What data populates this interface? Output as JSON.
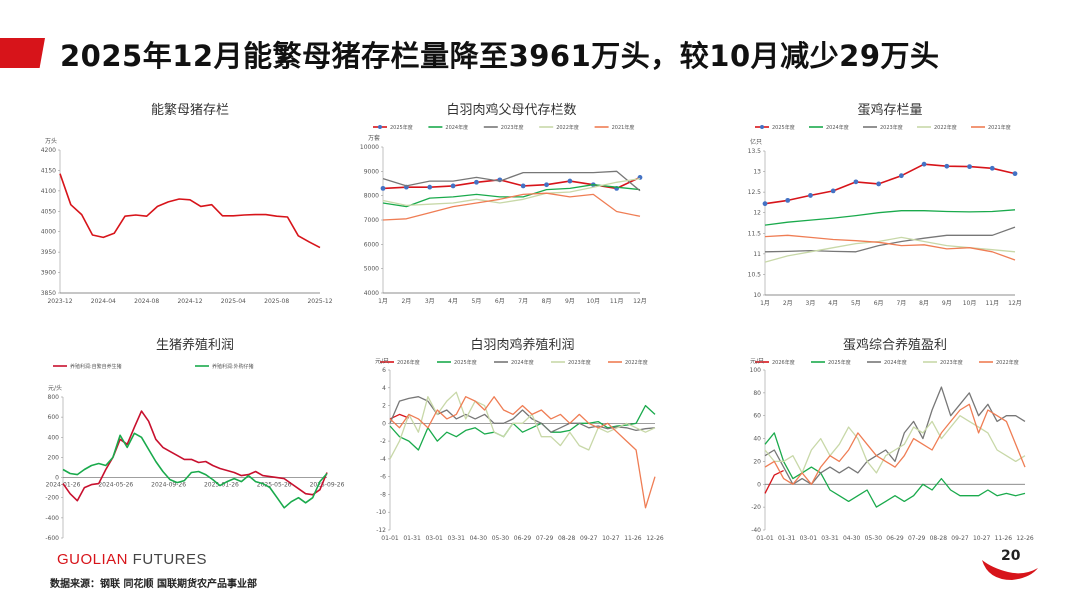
{
  "slide": {
    "title": "2025年12月能繁母猪存栏量降至3961万头，较10月减少29万头",
    "logo_main": "GUOLIAN",
    "logo_sub": " FUTURES",
    "source": "数据来源：钢联  同花顺  国联期货农产品事业部",
    "page_number": "20",
    "accent_color": "#d7141a"
  },
  "chart_data": [
    {
      "type": "line",
      "title": "能繁母猪存栏",
      "unit": "万头",
      "ylim": [
        3850,
        4200
      ],
      "yticks": [
        3850,
        3900,
        3950,
        4000,
        4050,
        4100,
        4150,
        4200
      ],
      "xticks": [
        "2023-12",
        "2024-04",
        "2024-08",
        "2024-12",
        "2025-04",
        "2025-08",
        "2025-12"
      ],
      "legend": [],
      "series": [
        {
          "color": "#d7141a",
          "values": [
            4142,
            4066,
            4042,
            3992,
            3986,
            3996,
            4038,
            4041,
            4038,
            4062,
            4073,
            4080,
            4078,
            4062,
            4066,
            4039,
            4039,
            4041,
            4042,
            4042,
            4038,
            4036,
            3990,
            3975,
            3961
          ]
        }
      ]
    },
    {
      "type": "line",
      "title": "白羽肉鸡父母代存栏数",
      "unit": "万套",
      "ylim": [
        4000,
        10000
      ],
      "yticks": [
        4000,
        5000,
        6000,
        7000,
        8000,
        9000,
        10000
      ],
      "xticks": [
        "1月",
        "2月",
        "3月",
        "4月",
        "5月",
        "6月",
        "7月",
        "8月",
        "9月",
        "10月",
        "11月",
        "12月"
      ],
      "legend": [
        "2025年度",
        "2024年度",
        "2023年度",
        "2022年度",
        "2021年度"
      ],
      "series": [
        {
          "name": "2025年度",
          "color": "#d7141a",
          "markers": true,
          "values": [
            8300,
            8350,
            8350,
            8400,
            8550,
            8650,
            8400,
            8450,
            8600,
            8450,
            8300,
            8750
          ]
        },
        {
          "name": "2024年度",
          "color": "#1aaa4c",
          "values": [
            7700,
            7550,
            7900,
            7950,
            8050,
            7950,
            7950,
            8250,
            8300,
            8450,
            8350,
            8250
          ]
        },
        {
          "name": "2023年度",
          "color": "#777777",
          "values": [
            8700,
            8400,
            8600,
            8600,
            8750,
            8600,
            8950,
            8950,
            8950,
            8950,
            9000,
            8200
          ]
        },
        {
          "name": "2022年度",
          "color": "#c8d8a8",
          "values": [
            7800,
            7600,
            7650,
            7700,
            7850,
            7700,
            7850,
            8100,
            8150,
            8350,
            8550,
            8700
          ]
        },
        {
          "name": "2021年度",
          "color": "#ef7d54",
          "values": [
            7000,
            7050,
            7300,
            7550,
            7700,
            7850,
            8050,
            8100,
            7950,
            8050,
            7350,
            7150
          ]
        }
      ]
    },
    {
      "type": "line",
      "title": "蛋鸡存栏量",
      "unit": "亿只",
      "ylim": [
        10,
        13.5
      ],
      "yticks": [
        10,
        10.5,
        11,
        11.5,
        12,
        12.5,
        13,
        13.5
      ],
      "xticks": [
        "1月",
        "2月",
        "3月",
        "4月",
        "5月",
        "6月",
        "7月",
        "8月",
        "9月",
        "10月",
        "11月",
        "12月"
      ],
      "legend": [
        "2025年度",
        "2024年度",
        "2023年度",
        "2022年度",
        "2021年度"
      ],
      "series": [
        {
          "name": "2025年度",
          "color": "#d7141a",
          "markers": true,
          "values": [
            12.22,
            12.3,
            12.42,
            12.53,
            12.75,
            12.7,
            12.9,
            13.18,
            13.13,
            13.12,
            13.08,
            12.95
          ]
        },
        {
          "name": "2024年度",
          "color": "#1aaa4c",
          "values": [
            11.7,
            11.77,
            11.82,
            11.87,
            11.93,
            12.0,
            12.05,
            12.05,
            12.03,
            12.02,
            12.03,
            12.07
          ]
        },
        {
          "name": "2023年度",
          "color": "#777777",
          "values": [
            11.05,
            11.06,
            11.08,
            11.06,
            11.05,
            11.2,
            11.3,
            11.38,
            11.45,
            11.45,
            11.45,
            11.65
          ]
        },
        {
          "name": "2022年度",
          "color": "#c8d8a8",
          "values": [
            10.8,
            10.95,
            11.05,
            11.15,
            11.25,
            11.3,
            11.4,
            11.3,
            11.2,
            11.15,
            11.1,
            11.05
          ]
        },
        {
          "name": "2021年度",
          "color": "#ef7d54",
          "values": [
            11.42,
            11.45,
            11.4,
            11.35,
            11.32,
            11.28,
            11.2,
            11.22,
            11.12,
            11.15,
            11.05,
            10.85
          ]
        }
      ]
    },
    {
      "type": "line",
      "title": "生猪养殖利润",
      "unit": "元/头",
      "ylim": [
        -600,
        800
      ],
      "yticks": [
        -600,
        -400,
        -200,
        0,
        200,
        400,
        600,
        800
      ],
      "xticks": [
        "2024-01-26",
        "2024-05-26",
        "2024-09-26",
        "2025-01-26",
        "2025-05-26",
        "2025-09-26"
      ],
      "legend": [
        "养殖利润:自繁自养生猪",
        "养殖利润:外购仔猪"
      ],
      "series": [
        {
          "name": "养殖利润:自繁自养生猪",
          "color": "#c8102e",
          "values": [
            -60,
            -160,
            -230,
            -100,
            -70,
            -60,
            80,
            200,
            380,
            330,
            500,
            660,
            560,
            380,
            300,
            260,
            220,
            180,
            180,
            150,
            160,
            120,
            90,
            70,
            50,
            20,
            30,
            60,
            20,
            10,
            0,
            -10,
            -60,
            -110,
            -160,
            -170,
            -120,
            50
          ]
        },
        {
          "name": "养殖利润:外购仔猪",
          "color": "#1aaa4c",
          "values": [
            80,
            40,
            30,
            80,
            120,
            140,
            120,
            200,
            420,
            300,
            440,
            400,
            280,
            160,
            60,
            -20,
            -50,
            -30,
            50,
            60,
            30,
            -20,
            -80,
            -40,
            -10,
            -40,
            20,
            -40,
            -60,
            -100,
            -200,
            -300,
            -240,
            -200,
            -250,
            -200,
            -40,
            40
          ]
        }
      ]
    },
    {
      "type": "line",
      "title": "白羽肉鸡养殖利润",
      "unit": "元/只",
      "ylim": [
        -12,
        6
      ],
      "yticks": [
        -12,
        -10,
        -8,
        -6,
        -4,
        -2,
        0,
        2,
        4,
        6
      ],
      "xticks": [
        "01-01",
        "01-31",
        "03-01",
        "03-31",
        "04-30",
        "05-30",
        "06-29",
        "07-29",
        "08-28",
        "09-27",
        "10-27",
        "11-26",
        "12-26"
      ],
      "legend": [
        "2026年度",
        "2025年度",
        "2024年度",
        "2023年度",
        "2022年度"
      ],
      "series": [
        {
          "name": "2026年度",
          "color": "#d7141a",
          "values": [
            0.5,
            1.0,
            0.6
          ]
        },
        {
          "name": "2025年度",
          "color": "#1aaa4c",
          "values": [
            -0.3,
            -1.5,
            -2.0,
            -3.0,
            -0.5,
            -2.0,
            -1.0,
            -1.5,
            -0.8,
            -0.5,
            -1.2,
            -1.0,
            -1.5,
            0.0,
            -1.0,
            -0.5,
            0.0,
            -1.0,
            -1.0,
            -0.8,
            0.0,
            0.0,
            0.2,
            -0.5,
            -0.3,
            -0.2,
            0.0,
            2.0,
            1.0
          ]
        },
        {
          "name": "2024年度",
          "color": "#777777",
          "values": [
            0.0,
            2.5,
            2.8,
            3.0,
            2.5,
            1.0,
            1.5,
            0.5,
            1.0,
            0.5,
            1.0,
            0.0,
            0.0,
            0.5,
            1.5,
            0.5,
            0.0,
            -1.0,
            -0.5,
            0.0,
            0.0,
            -0.5,
            -0.3,
            -0.6,
            -0.4,
            -0.5,
            -0.8,
            -0.6,
            -0.5
          ]
        },
        {
          "name": "2023年度",
          "color": "#c8d8a8",
          "values": [
            -4.0,
            -2.0,
            1.0,
            -1.0,
            3.0,
            1.0,
            2.5,
            3.5,
            0.5,
            2.5,
            2.0,
            -1.0,
            -1.5,
            0.0,
            0.0,
            1.0,
            -1.5,
            -1.5,
            -2.5,
            -1.0,
            -2.5,
            -3.0,
            -0.5,
            -1.0,
            -0.5,
            0.0,
            -0.5,
            -1.0,
            -0.5
          ]
        },
        {
          "name": "2022年度",
          "color": "#ef7d54",
          "values": [
            0.5,
            -0.5,
            1.0,
            0.5,
            -0.5,
            1.5,
            0.5,
            1.0,
            3.0,
            2.5,
            1.5,
            3.0,
            1.5,
            1.0,
            2.0,
            1.0,
            1.5,
            0.5,
            1.0,
            0.0,
            1.0,
            0.0,
            -0.5,
            0.0,
            -1.0,
            -2.0,
            -3.0,
            -9.5,
            -6.0
          ]
        }
      ]
    },
    {
      "type": "line",
      "title": "蛋鸡综合养殖盈利",
      "unit": "元/只",
      "ylim": [
        -40,
        100
      ],
      "yticks": [
        -40,
        -20,
        0,
        20,
        40,
        60,
        80,
        100
      ],
      "xticks": [
        "01-01",
        "01-31",
        "03-01",
        "03-31",
        "04-30",
        "05-30",
        "06-29",
        "07-29",
        "08-28",
        "09-27",
        "10-27",
        "11-26",
        "12-26"
      ],
      "legend": [
        "2026年度",
        "2025年度",
        "2024年度",
        "2023年度",
        "2022年度"
      ],
      "series": [
        {
          "name": "2026年度",
          "color": "#d7141a",
          "values": [
            -8,
            8,
            12
          ]
        },
        {
          "name": "2025年度",
          "color": "#1aaa4c",
          "values": [
            35,
            45,
            20,
            5,
            10,
            15,
            10,
            -5,
            -10,
            -15,
            -10,
            -5,
            -20,
            -15,
            -10,
            -15,
            -10,
            0,
            -5,
            5,
            -5,
            -10,
            -10,
            -10,
            -5,
            -10,
            -8,
            -10,
            -8
          ]
        },
        {
          "name": "2024年度",
          "color": "#777777",
          "values": [
            25,
            30,
            15,
            0,
            5,
            0,
            10,
            15,
            10,
            15,
            10,
            20,
            25,
            30,
            20,
            45,
            55,
            40,
            65,
            85,
            60,
            70,
            80,
            60,
            70,
            55,
            60,
            60,
            55
          ]
        },
        {
          "name": "2023年度",
          "color": "#c8d8a8",
          "values": [
            30,
            20,
            20,
            25,
            10,
            30,
            40,
            25,
            35,
            50,
            40,
            20,
            10,
            25,
            30,
            35,
            50,
            45,
            55,
            40,
            50,
            60,
            55,
            50,
            45,
            30,
            25,
            20,
            25
          ]
        },
        {
          "name": "2022年度",
          "color": "#ef7d54",
          "values": [
            15,
            20,
            5,
            0,
            10,
            0,
            15,
            25,
            20,
            30,
            45,
            35,
            25,
            20,
            15,
            25,
            40,
            35,
            30,
            45,
            55,
            65,
            70,
            45,
            65,
            60,
            55,
            35,
            15
          ]
        }
      ]
    }
  ]
}
